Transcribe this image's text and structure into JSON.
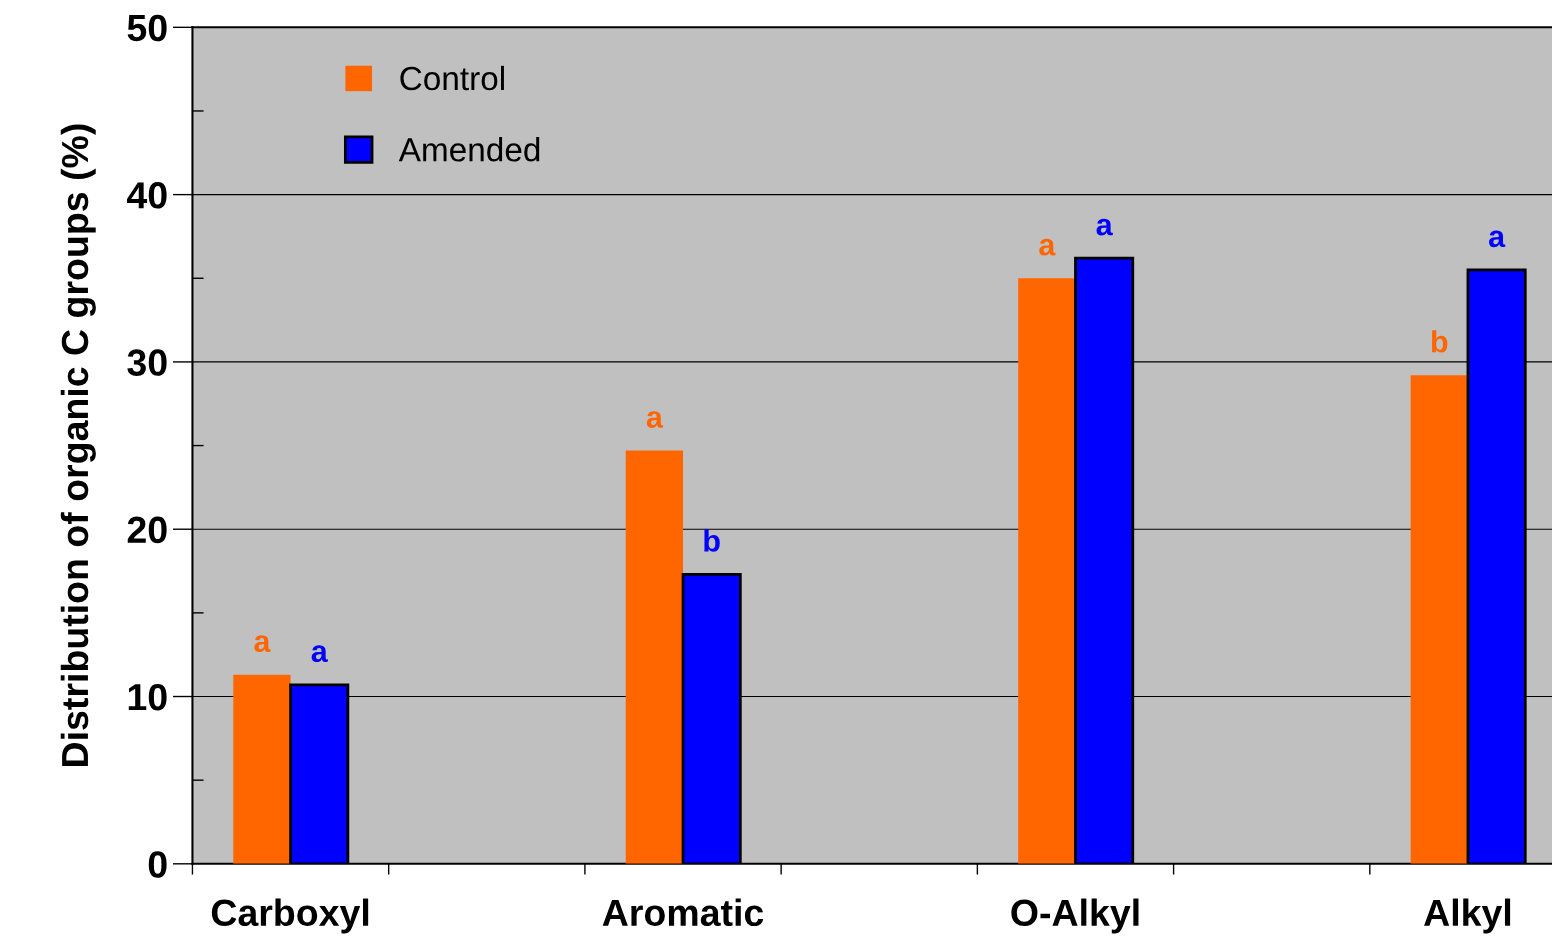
{
  "chart_data": {
    "type": "bar",
    "ylabel": "Distribution of organic C groups (%)",
    "categories": [
      "Carboxyl",
      "Aromatic",
      "O-Alkyl",
      "Alkyl"
    ],
    "series": [
      {
        "name": "Control",
        "color": "#ff6600",
        "values": [
          11.3,
          24.7,
          35.0,
          29.2
        ],
        "value_labels": [
          "a",
          "a",
          "a",
          "b"
        ]
      },
      {
        "name": "Amended",
        "color": "#0000ff",
        "values": [
          10.7,
          17.3,
          36.2,
          35.5
        ],
        "value_labels": [
          "a",
          "b",
          "a",
          "a"
        ]
      }
    ],
    "ylim": [
      0,
      50
    ],
    "yticks": [
      0,
      {
        "value": 5,
        "label": null
      },
      10,
      {
        "value": 15,
        "label": null
      },
      20,
      {
        "value": 25,
        "label": null
      },
      30,
      {
        "value": 35,
        "label": null
      },
      40,
      {
        "value": 45,
        "label": null
      },
      50
    ],
    "grid": "y",
    "legend": "top left"
  }
}
